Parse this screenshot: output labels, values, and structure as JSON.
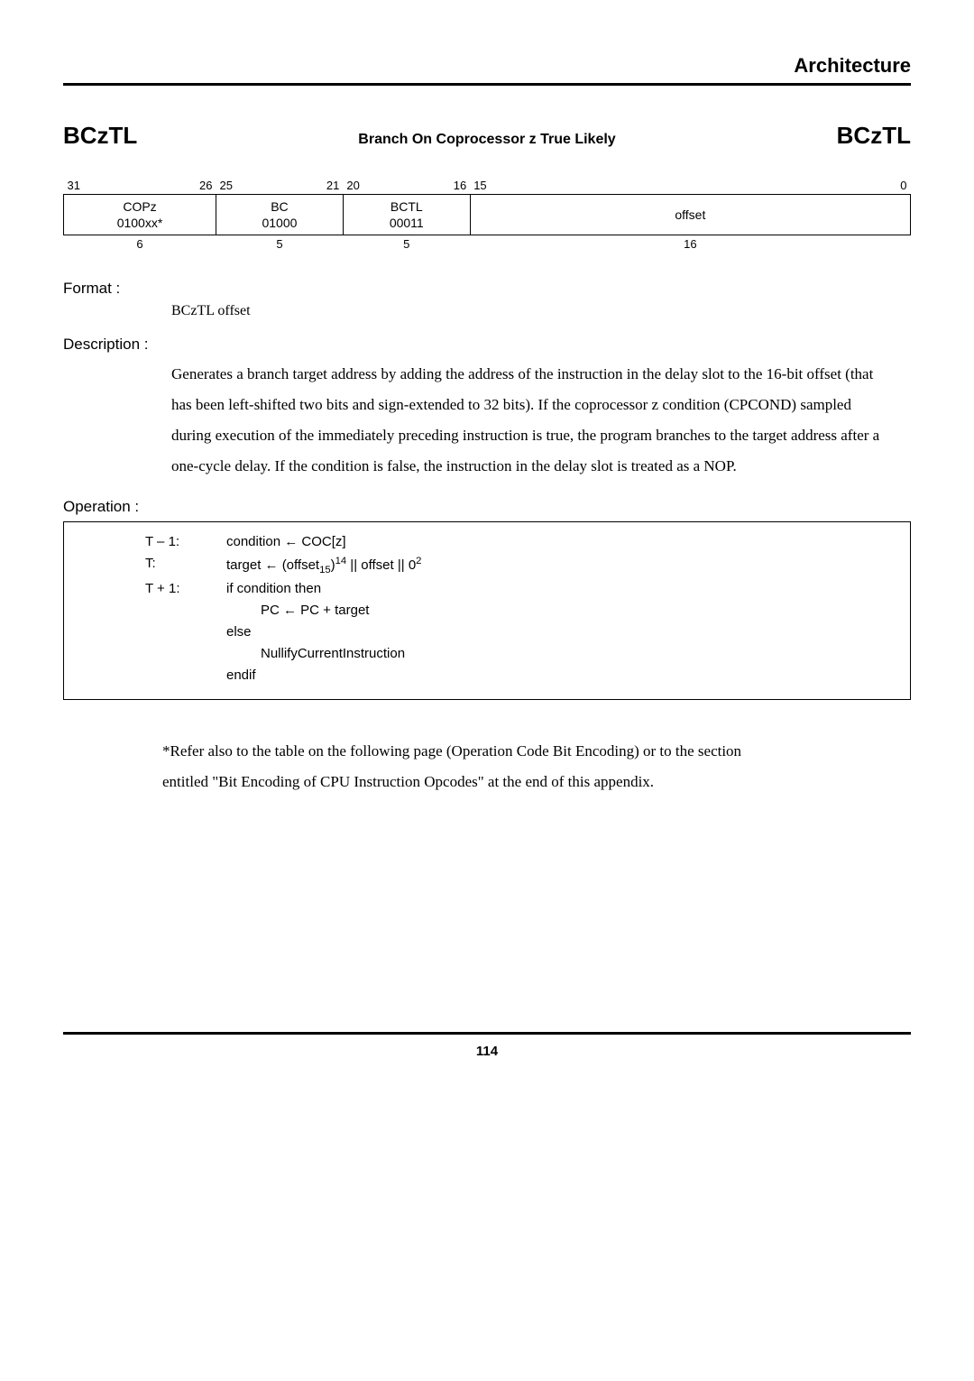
{
  "header": {
    "title": "Architecture"
  },
  "title": {
    "left": "BCzTL",
    "center": "Branch On Coprocessor z True Likely",
    "right": "BCzTL"
  },
  "encoding": {
    "bits": {
      "c1l": "31",
      "c1r": "26",
      "c2l": "25",
      "c2r": "21",
      "c3l": "20",
      "c3r": "16",
      "c4l": "15",
      "c4r": "0"
    },
    "fields": {
      "c1_top": "COPz",
      "c1_bot": "0100xx*",
      "c2_top": "BC",
      "c2_bot": "01000",
      "c3_top": "BCTL",
      "c3_bot": "00011",
      "c4": "offset"
    },
    "widths": {
      "c1": "6",
      "c2": "5",
      "c3": "5",
      "c4": "16"
    },
    "col_pct": {
      "c1": 18,
      "c2": 15,
      "c3": 15,
      "c4": 52
    }
  },
  "format": {
    "label": "Format :",
    "text": "BCzTL offset"
  },
  "description": {
    "label": "Description :",
    "text": "Generates a branch target address by adding the address of the instruction in the delay slot to the 16-bit offset (that has been left-shifted two bits and sign-extended to 32 bits).    If the coprocessor z condition (CPCOND) sampled during execution of the immediately preceding instruction is true, the program branches to the target address after a one-cycle delay.    If the condition is false, the instruction in the delay slot is treated as a NOP."
  },
  "operation": {
    "label": "Operation :",
    "t1_label": "T – 1:",
    "t1_body": "condition ← COC[z]",
    "t2_label": "T:",
    "t2_prefix": "target ← (offset",
    "t2_sub": "15",
    "t2_mid": ")",
    "t2_sup1": "14",
    "t2_mid2": "   || offset || 0",
    "t2_sup2": "2",
    "t3_label": "T + 1:",
    "t3_body": "if condition then",
    "t4_body": "PC ← PC + target",
    "t5_body": "else",
    "t6_body": "NullifyCurrentInstruction",
    "t7_body": "endif"
  },
  "footnote": {
    "line1": "*Refer also to the table on the following page (Operation Code Bit Encoding) or to the section",
    "line2": " entitled \"Bit Encoding of CPU Instruction Opcodes\" at the end of this appendix."
  },
  "footer": {
    "page": "114"
  }
}
